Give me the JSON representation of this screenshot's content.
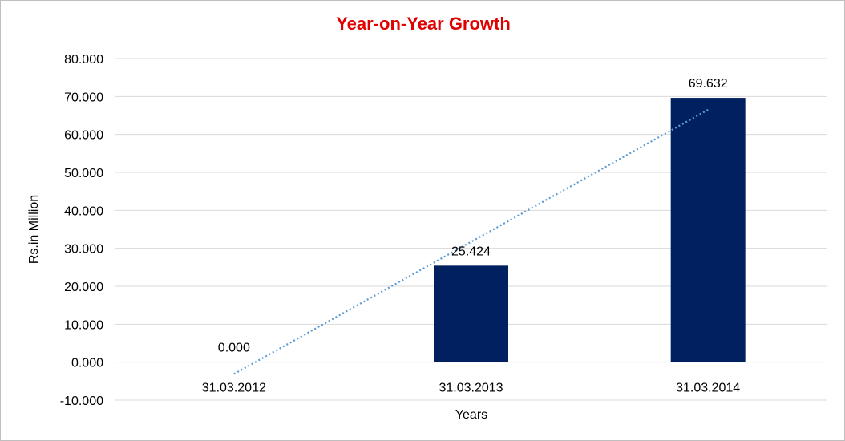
{
  "chart_data": {
    "type": "bar",
    "title": "Year-on-Year Growth",
    "xlabel": "Years",
    "ylabel": "Rs.in Million",
    "categories": [
      "31.03.2012",
      "31.03.2013",
      "31.03.2014"
    ],
    "values": [
      0.0,
      25.424,
      69.632
    ],
    "data_labels": [
      "0.000",
      "25.424",
      "69.632"
    ],
    "yticks": [
      -10,
      0,
      10,
      20,
      30,
      40,
      50,
      60,
      70,
      80
    ],
    "ytick_labels": [
      "-10.000",
      "0.000",
      "10.000",
      "20.000",
      "30.000",
      "40.000",
      "50.000",
      "60.000",
      "70.000",
      "80.000"
    ],
    "ylim": [
      -10,
      80
    ],
    "grid": true,
    "legend": "none",
    "trendline": {
      "type": "linear",
      "style": "dotted"
    },
    "colors": {
      "bar": "#002060",
      "trendline": "#5b9bd5",
      "title": "#e00000",
      "grid": "#d9d9d9"
    }
  }
}
